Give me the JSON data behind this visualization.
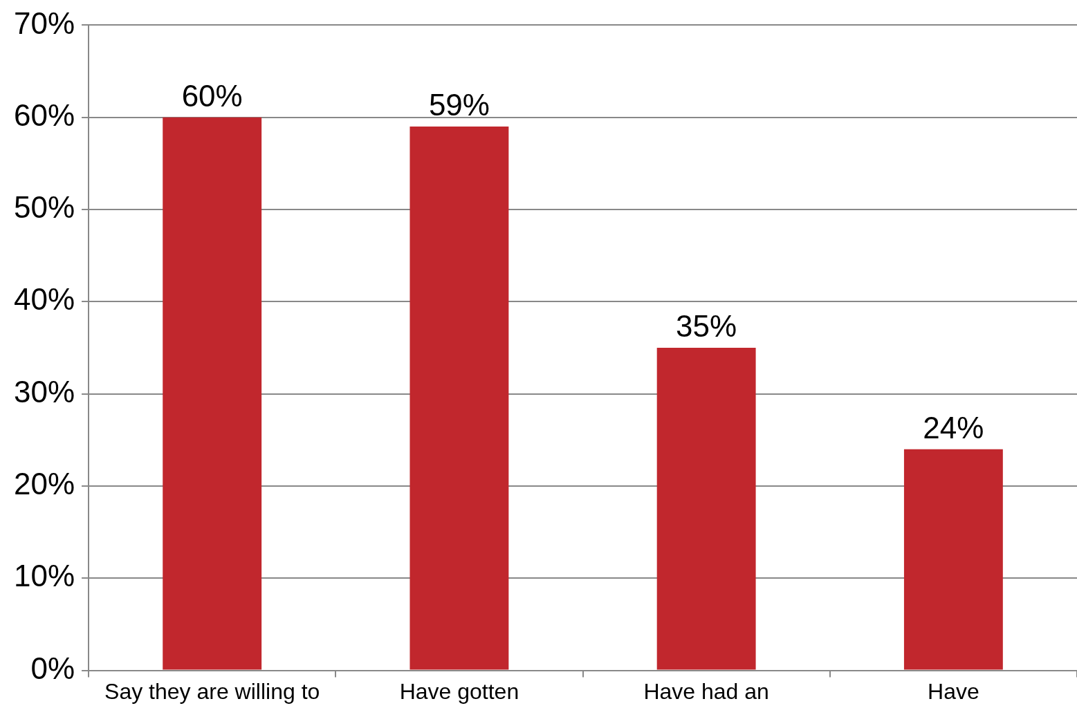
{
  "chart_data": {
    "type": "bar",
    "categories": [
      "Say they are willing to",
      "Have gotten",
      "Have had an",
      "Have"
    ],
    "values": [
      60,
      59,
      35,
      24
    ],
    "value_labels": [
      "60%",
      "59%",
      "35%",
      "24%"
    ],
    "color": "#c1272d",
    "ylim": [
      0,
      70
    ],
    "yticks": [
      {
        "value": 0,
        "label": "0%"
      },
      {
        "value": 10,
        "label": "10%"
      },
      {
        "value": 20,
        "label": "20%"
      },
      {
        "value": 30,
        "label": "30%"
      },
      {
        "value": 40,
        "label": "40%"
      },
      {
        "value": 50,
        "label": "50%"
      },
      {
        "value": 60,
        "label": "60%"
      },
      {
        "value": 70,
        "label": "70%"
      }
    ],
    "grid": "y",
    "legend": false
  }
}
